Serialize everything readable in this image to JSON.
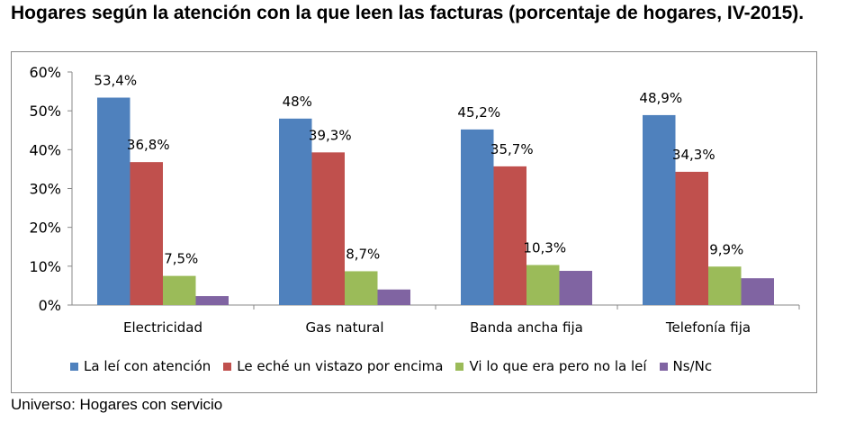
{
  "title": "Hogares según la atención con la que leen las facturas (porcentaje de hogares, IV-2015).",
  "footer": "Universo: Hogares con servicio",
  "chart_data": {
    "type": "bar",
    "categories": [
      "Electricidad",
      "Gas natural",
      "Banda ancha fija",
      "Telefonía fija"
    ],
    "series": [
      {
        "name": "La leí con atención",
        "color": "#4f81bd",
        "values": [
          53.4,
          48,
          45.2,
          48.9
        ],
        "labels": [
          "53,4%",
          "48%",
          "45,2%",
          "48,9%"
        ]
      },
      {
        "name": "Le eché un vistazo por encima",
        "color": "#c0504d",
        "values": [
          36.8,
          39.3,
          35.7,
          34.3
        ],
        "labels": [
          "36,8%",
          "39,3%",
          "35,7%",
          "34,3%"
        ]
      },
      {
        "name": "Vi lo que era pero no la leí",
        "color": "#9bbb59",
        "values": [
          7.5,
          8.7,
          10.3,
          9.9
        ],
        "labels": [
          "7,5%",
          "8,7%",
          "10,3%",
          "9,9%"
        ]
      },
      {
        "name": "Ns/Nc",
        "color": "#8064a2",
        "values": [
          2.3,
          4.0,
          8.8,
          6.9
        ],
        "labels": [
          "",
          "",
          "",
          ""
        ]
      }
    ],
    "yticks": [
      "0%",
      "10%",
      "20%",
      "30%",
      "40%",
      "50%",
      "60%"
    ],
    "ylim": [
      0,
      60
    ],
    "grid": false,
    "legend": "bottom"
  }
}
